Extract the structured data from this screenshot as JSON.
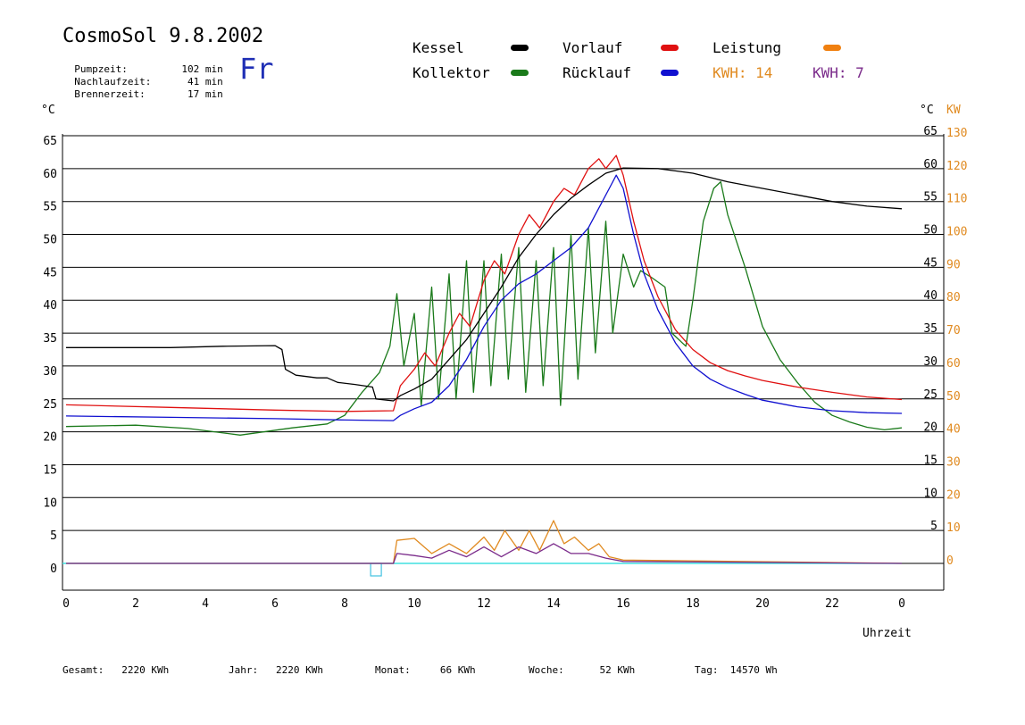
{
  "header": {
    "title": "CosmoSol 9.8.2002",
    "weekday": "Fr",
    "stats": [
      {
        "label": "Pumpzeit:",
        "value": "102",
        "unit": "min"
      },
      {
        "label": "Nachlaufzeit:",
        "value": "41",
        "unit": "min"
      },
      {
        "label": "Brennerzeit:",
        "value": "17",
        "unit": "min"
      }
    ]
  },
  "legend": {
    "items": [
      {
        "label": "Kessel",
        "color": "#000000"
      },
      {
        "label": "Kollektor",
        "color": "#1a7a1a"
      },
      {
        "label": "Vorlauf",
        "color": "#e01010"
      },
      {
        "label": "Rücklauf",
        "color": "#1010d0"
      },
      {
        "label": "Leistung",
        "color": "#f08010"
      }
    ],
    "kwh_orange": "KWH: 14",
    "kwh_purple": "KWH: 7",
    "kwh_orange_color": "#e08a20",
    "kwh_purple_color": "#7a2a8a"
  },
  "axes": {
    "left_unit": "°C",
    "right_unit": "°C",
    "right_kw_unit": "KW",
    "xlabel": "Uhrzeit"
  },
  "footer": {
    "items": [
      {
        "label": "Gesamt:",
        "value": "2220 KWh"
      },
      {
        "label": "Jahr:",
        "value": "2220 KWh"
      },
      {
        "label": "Monat:",
        "value": "66 KWh"
      },
      {
        "label": "Woche:",
        "value": "52 KWh"
      },
      {
        "label": "Tag:",
        "value": "14570 Wh"
      }
    ]
  },
  "chart_data": {
    "type": "line",
    "x_ticks": [
      "0",
      "2",
      "4",
      "6",
      "8",
      "10",
      "12",
      "14",
      "16",
      "18",
      "20",
      "22",
      "0"
    ],
    "y_ticks_left": [
      0,
      5,
      10,
      15,
      20,
      25,
      30,
      35,
      40,
      45,
      50,
      55,
      60,
      65
    ],
    "y_ticks_right": [
      5,
      10,
      15,
      20,
      25,
      30,
      35,
      40,
      45,
      50,
      55,
      60,
      65
    ],
    "y_ticks_kw": [
      0,
      10,
      20,
      30,
      40,
      50,
      60,
      70,
      80,
      90,
      100,
      110,
      120,
      130
    ],
    "xlim": [
      0,
      24
    ],
    "ylim": [
      0,
      65
    ],
    "grid": true,
    "series": [
      {
        "name": "Kessel",
        "color": "#000000",
        "points": [
          [
            0,
            32.8
          ],
          [
            3,
            32.8
          ],
          [
            4.5,
            33.0
          ],
          [
            6,
            33.1
          ],
          [
            6.2,
            32.5
          ],
          [
            6.3,
            29.5
          ],
          [
            6.6,
            28.6
          ],
          [
            7.2,
            28.2
          ],
          [
            7.5,
            28.2
          ],
          [
            7.8,
            27.5
          ],
          [
            8.3,
            27.2
          ],
          [
            8.8,
            26.8
          ],
          [
            8.9,
            25.0
          ],
          [
            9.4,
            24.7
          ],
          [
            9.6,
            25.5
          ],
          [
            10,
            26.5
          ],
          [
            10.5,
            28.0
          ],
          [
            11,
            31.0
          ],
          [
            11.5,
            34.0
          ],
          [
            12,
            38.0
          ],
          [
            12.5,
            42.0
          ],
          [
            13,
            46.5
          ],
          [
            13.5,
            50.0
          ],
          [
            14,
            53.0
          ],
          [
            14.5,
            55.5
          ],
          [
            15,
            57.5
          ],
          [
            15.5,
            59.3
          ],
          [
            16,
            60.1
          ],
          [
            17,
            60.0
          ],
          [
            18,
            59.3
          ],
          [
            19,
            58.0
          ],
          [
            20,
            57.0
          ],
          [
            21,
            56.0
          ],
          [
            22,
            55.0
          ],
          [
            23,
            54.3
          ],
          [
            24,
            53.9
          ]
        ]
      },
      {
        "name": "Vorlauf",
        "color": "#e01010",
        "points": [
          [
            0,
            24.1
          ],
          [
            3,
            23.7
          ],
          [
            6,
            23.3
          ],
          [
            8,
            23.1
          ],
          [
            9.4,
            23.2
          ],
          [
            9.6,
            27.0
          ],
          [
            10,
            29.5
          ],
          [
            10.3,
            32.0
          ],
          [
            10.6,
            30.0
          ],
          [
            11,
            35.0
          ],
          [
            11.3,
            38.0
          ],
          [
            11.6,
            36.0
          ],
          [
            12,
            43.0
          ],
          [
            12.3,
            46.0
          ],
          [
            12.6,
            44.0
          ],
          [
            13,
            50.0
          ],
          [
            13.3,
            53.0
          ],
          [
            13.6,
            51.0
          ],
          [
            14,
            55.0
          ],
          [
            14.3,
            57.0
          ],
          [
            14.6,
            56.0
          ],
          [
            15,
            60.0
          ],
          [
            15.3,
            61.5
          ],
          [
            15.5,
            60.0
          ],
          [
            15.8,
            62.0
          ],
          [
            16,
            59.0
          ],
          [
            16.3,
            52.0
          ],
          [
            16.6,
            46.0
          ],
          [
            17,
            40.5
          ],
          [
            17.5,
            35.5
          ],
          [
            18,
            32.5
          ],
          [
            18.5,
            30.5
          ],
          [
            19,
            29.3
          ],
          [
            19.5,
            28.5
          ],
          [
            20,
            27.8
          ],
          [
            21,
            26.8
          ],
          [
            22,
            26.0
          ],
          [
            23,
            25.3
          ],
          [
            24,
            24.9
          ]
        ]
      },
      {
        "name": "Rücklauf",
        "color": "#1010d0",
        "points": [
          [
            0,
            22.4
          ],
          [
            3,
            22.2
          ],
          [
            6,
            22.0
          ],
          [
            8,
            21.8
          ],
          [
            9.4,
            21.7
          ],
          [
            9.6,
            22.5
          ],
          [
            10,
            23.5
          ],
          [
            10.5,
            24.5
          ],
          [
            11,
            27.0
          ],
          [
            11.5,
            31.0
          ],
          [
            12,
            36.0
          ],
          [
            12.5,
            40.0
          ],
          [
            13,
            42.5
          ],
          [
            13.5,
            44.0
          ],
          [
            14,
            46.0
          ],
          [
            14.5,
            48.0
          ],
          [
            15,
            51.0
          ],
          [
            15.3,
            54.0
          ],
          [
            15.6,
            57.0
          ],
          [
            15.8,
            59.0
          ],
          [
            16,
            57.0
          ],
          [
            16.3,
            50.0
          ],
          [
            16.6,
            44.0
          ],
          [
            17,
            38.5
          ],
          [
            17.5,
            33.5
          ],
          [
            18,
            30.0
          ],
          [
            18.5,
            28.0
          ],
          [
            19,
            26.7
          ],
          [
            19.5,
            25.7
          ],
          [
            20,
            24.8
          ],
          [
            21,
            23.8
          ],
          [
            22,
            23.2
          ],
          [
            23,
            22.9
          ],
          [
            24,
            22.8
          ]
        ]
      },
      {
        "name": "Kollektor",
        "color": "#1a7a1a",
        "points": [
          [
            0,
            20.8
          ],
          [
            2,
            21.0
          ],
          [
            3.5,
            20.5
          ],
          [
            5,
            19.5
          ],
          [
            6.5,
            20.6
          ],
          [
            7.5,
            21.2
          ],
          [
            8,
            22.5
          ],
          [
            8.5,
            26.0
          ],
          [
            9,
            29.0
          ],
          [
            9.3,
            33.0
          ],
          [
            9.5,
            41.0
          ],
          [
            9.7,
            30.0
          ],
          [
            10,
            38.0
          ],
          [
            10.2,
            24.0
          ],
          [
            10.5,
            42.0
          ],
          [
            10.7,
            25.0
          ],
          [
            11,
            44.0
          ],
          [
            11.2,
            25.0
          ],
          [
            11.5,
            46.0
          ],
          [
            11.7,
            26.0
          ],
          [
            12,
            46.0
          ],
          [
            12.2,
            27.0
          ],
          [
            12.5,
            47.0
          ],
          [
            12.7,
            28.0
          ],
          [
            13,
            48.0
          ],
          [
            13.2,
            26.0
          ],
          [
            13.5,
            46.0
          ],
          [
            13.7,
            27.0
          ],
          [
            14,
            48.0
          ],
          [
            14.2,
            24.0
          ],
          [
            14.5,
            50.0
          ],
          [
            14.7,
            28.0
          ],
          [
            15,
            51.0
          ],
          [
            15.2,
            32.0
          ],
          [
            15.5,
            52.0
          ],
          [
            15.7,
            35.0
          ],
          [
            16,
            47.0
          ],
          [
            16.3,
            42.0
          ],
          [
            16.5,
            44.5
          ],
          [
            16.8,
            43.5
          ],
          [
            17.2,
            42.0
          ],
          [
            17.4,
            35.0
          ],
          [
            17.8,
            33.0
          ],
          [
            18,
            40.0
          ],
          [
            18.3,
            52.0
          ],
          [
            18.6,
            57.0
          ],
          [
            18.8,
            58.0
          ],
          [
            19,
            53.0
          ],
          [
            19.5,
            45.0
          ],
          [
            20,
            36.0
          ],
          [
            20.5,
            31.0
          ],
          [
            21,
            27.5
          ],
          [
            21.5,
            24.5
          ],
          [
            22,
            22.5
          ],
          [
            22.5,
            21.5
          ],
          [
            23,
            20.7
          ],
          [
            23.5,
            20.3
          ],
          [
            24,
            20.6
          ]
        ]
      },
      {
        "name": "Leistung",
        "color": "#e08a20",
        "unit": "KW",
        "points": [
          [
            0,
            0
          ],
          [
            9.4,
            0
          ],
          [
            9.5,
            3.5
          ],
          [
            10,
            3.8
          ],
          [
            10.5,
            1.5
          ],
          [
            11,
            3.0
          ],
          [
            11.5,
            1.5
          ],
          [
            12,
            4.0
          ],
          [
            12.3,
            2.0
          ],
          [
            12.6,
            5.0
          ],
          [
            13,
            2.0
          ],
          [
            13.3,
            5.0
          ],
          [
            13.6,
            2.0
          ],
          [
            14,
            6.5
          ],
          [
            14.3,
            3.0
          ],
          [
            14.6,
            4.0
          ],
          [
            15,
            2.0
          ],
          [
            15.3,
            3.0
          ],
          [
            15.6,
            1.0
          ],
          [
            16,
            0.5
          ],
          [
            24,
            0
          ]
        ]
      },
      {
        "name": "KWH",
        "color": "#7a2a8a",
        "points": [
          [
            0,
            0
          ],
          [
            9.4,
            0
          ],
          [
            9.5,
            1.5
          ],
          [
            10,
            1.2
          ],
          [
            10.5,
            0.8
          ],
          [
            11,
            2.0
          ],
          [
            11.5,
            1.0
          ],
          [
            12,
            2.5
          ],
          [
            12.5,
            1.0
          ],
          [
            13,
            2.5
          ],
          [
            13.5,
            1.5
          ],
          [
            14,
            3.0
          ],
          [
            14.5,
            1.5
          ],
          [
            15,
            1.5
          ],
          [
            15.5,
            0.8
          ],
          [
            16,
            0.3
          ],
          [
            24,
            0
          ]
        ]
      }
    ]
  }
}
